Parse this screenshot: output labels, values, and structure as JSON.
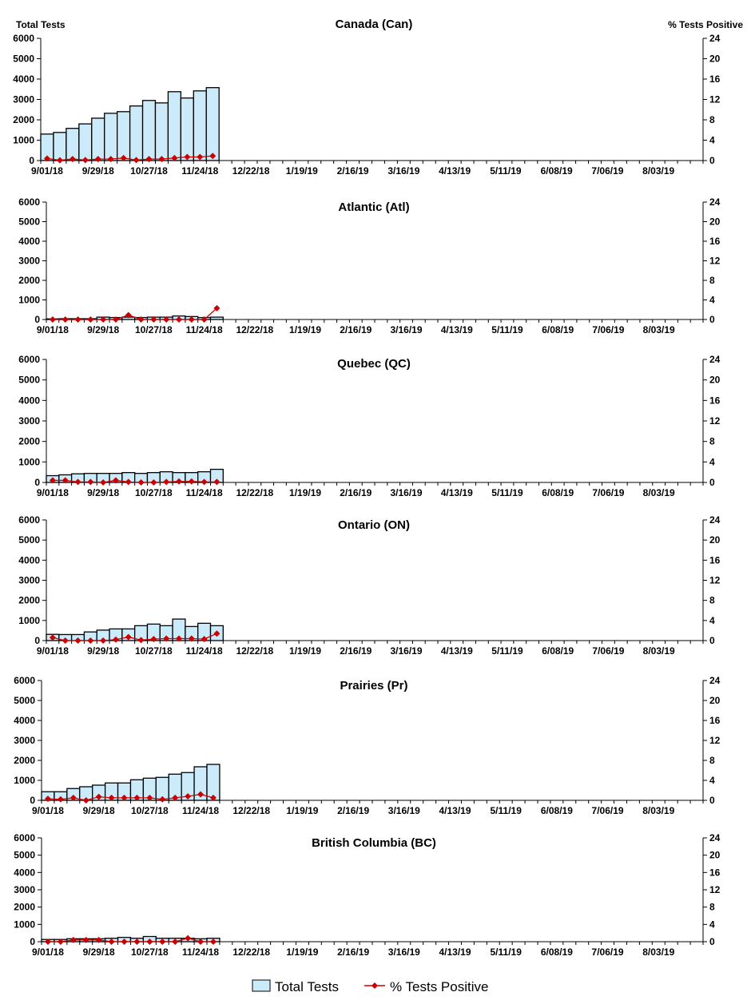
{
  "header": {
    "left_axis_label": "Total Tests",
    "right_axis_label": "% Tests Positive"
  },
  "legend": {
    "bars": "Total Tests",
    "line": "% Tests Positive"
  },
  "colors": {
    "bar_fill": "#CCEBFA",
    "bar_stroke": "#000000",
    "line": "#CC0000"
  },
  "chart_data": [
    {
      "type": "bar+line",
      "title": "Canada (Can)",
      "ylim": [
        0,
        6000
      ],
      "y2lim": [
        0,
        24
      ],
      "yticks": [
        "0",
        "1000",
        "2000",
        "3000",
        "4000",
        "5000",
        "6000"
      ],
      "y2ticks": [
        "0",
        "4",
        "8",
        "12",
        "16",
        "20",
        "24"
      ],
      "xticks": [
        "9/01/18",
        "9/29/18",
        "10/27/18",
        "11/24/18",
        "12/22/18",
        "1/19/19",
        "2/16/19",
        "3/16/19",
        "4/13/19",
        "5/11/19",
        "6/08/19",
        "7/06/19",
        "8/03/19"
      ],
      "total_tests": [
        1300,
        1380,
        1580,
        1800,
        2080,
        2320,
        2400,
        2680,
        2950,
        2830,
        3380,
        3070,
        3420,
        3580
      ],
      "pct_positive": [
        0.4,
        0.05,
        0.3,
        0.1,
        0.3,
        0.3,
        0.5,
        0.1,
        0.3,
        0.3,
        0.5,
        0.7,
        0.7,
        0.9
      ]
    },
    {
      "type": "bar+line",
      "title": "Atlantic (Atl)",
      "ylim": [
        0,
        6000
      ],
      "y2lim": [
        0,
        24
      ],
      "yticks": [
        "0",
        "1000",
        "2000",
        "3000",
        "4000",
        "5000",
        "6000"
      ],
      "y2ticks": [
        "0",
        "4",
        "8",
        "12",
        "16",
        "20",
        "24"
      ],
      "xticks": [
        "9/01/18",
        "9/29/18",
        "10/27/18",
        "11/24/18",
        "12/22/18",
        "1/19/19",
        "2/16/19",
        "3/16/19",
        "4/13/19",
        "5/11/19",
        "6/08/19",
        "7/06/19",
        "8/03/19"
      ],
      "total_tests": [
        30,
        40,
        40,
        40,
        120,
        100,
        120,
        100,
        120,
        120,
        180,
        150,
        100,
        120
      ],
      "pct_positive": [
        0,
        0,
        0,
        0,
        0,
        0,
        0.9,
        0,
        0,
        0,
        0,
        0,
        0,
        2.3
      ]
    },
    {
      "type": "bar+line",
      "title": "Quebec (QC)",
      "ylim": [
        0,
        6000
      ],
      "y2lim": [
        0,
        24
      ],
      "yticks": [
        "0",
        "1000",
        "2000",
        "3000",
        "4000",
        "5000",
        "6000"
      ],
      "y2ticks": [
        "0",
        "4",
        "8",
        "12",
        "16",
        "20",
        "24"
      ],
      "xticks": [
        "9/01/18",
        "9/29/18",
        "10/27/18",
        "11/24/18",
        "12/22/18",
        "1/19/19",
        "2/16/19",
        "3/16/19",
        "4/13/19",
        "5/11/19",
        "6/08/19",
        "7/06/19",
        "8/03/19"
      ],
      "total_tests": [
        330,
        370,
        420,
        440,
        440,
        440,
        480,
        440,
        480,
        520,
        480,
        480,
        520,
        640
      ],
      "pct_positive": [
        0.4,
        0.4,
        0.1,
        0.1,
        0,
        0.4,
        0.1,
        0,
        0,
        0.1,
        0.2,
        0.2,
        0.1,
        0.1
      ]
    },
    {
      "type": "bar+line",
      "title": "Ontario (ON)",
      "ylim": [
        0,
        6000
      ],
      "y2lim": [
        0,
        24
      ],
      "yticks": [
        "0",
        "1000",
        "2000",
        "3000",
        "4000",
        "5000",
        "6000"
      ],
      "y2ticks": [
        "0",
        "4",
        "8",
        "12",
        "16",
        "20",
        "24"
      ],
      "xticks": [
        "9/01/18",
        "9/29/18",
        "10/27/18",
        "11/24/18",
        "12/22/18",
        "1/19/19",
        "2/16/19",
        "3/16/19",
        "4/13/19",
        "5/11/19",
        "6/08/19",
        "7/06/19",
        "8/03/19"
      ],
      "total_tests": [
        310,
        300,
        300,
        430,
        520,
        580,
        580,
        740,
        820,
        740,
        1070,
        700,
        860,
        740
      ],
      "pct_positive": [
        0.6,
        0,
        0,
        0,
        0,
        0.2,
        0.7,
        0.1,
        0.3,
        0.4,
        0.4,
        0.4,
        0.3,
        1.4
      ]
    },
    {
      "type": "bar+line",
      "title": "Prairies (Pr)",
      "ylim": [
        0,
        6000
      ],
      "y2lim": [
        0,
        24
      ],
      "yticks": [
        "0",
        "1000",
        "2000",
        "3000",
        "4000",
        "5000",
        "6000"
      ],
      "y2ticks": [
        "0",
        "4",
        "8",
        "12",
        "16",
        "20",
        "24"
      ],
      "xticks": [
        "9/01/18",
        "9/29/18",
        "10/27/18",
        "11/24/18",
        "12/22/18",
        "1/19/19",
        "2/16/19",
        "3/16/19",
        "4/13/19",
        "5/11/19",
        "6/08/19",
        "7/06/19",
        "8/03/19"
      ],
      "total_tests": [
        430,
        430,
        590,
        680,
        760,
        870,
        870,
        1030,
        1110,
        1150,
        1310,
        1390,
        1680,
        1800
      ],
      "pct_positive": [
        0.3,
        0.2,
        0.5,
        0,
        0.7,
        0.5,
        0.5,
        0.5,
        0.5,
        0.2,
        0.5,
        0.8,
        1.2,
        0.5
      ]
    },
    {
      "type": "bar+line",
      "title": "British Columbia (BC)",
      "ylim": [
        0,
        6000
      ],
      "y2lim": [
        0,
        24
      ],
      "yticks": [
        "0",
        "1000",
        "2000",
        "3000",
        "4000",
        "5000",
        "6000"
      ],
      "y2ticks": [
        "0",
        "4",
        "8",
        "12",
        "16",
        "20",
        "24"
      ],
      "xticks": [
        "9/01/18",
        "9/29/18",
        "10/27/18",
        "11/24/18",
        "12/22/18",
        "1/19/19",
        "2/16/19",
        "3/16/19",
        "4/13/19",
        "5/11/19",
        "6/08/19",
        "7/06/19",
        "8/03/19"
      ],
      "total_tests": [
        130,
        130,
        170,
        170,
        170,
        200,
        250,
        200,
        300,
        200,
        200,
        200,
        170,
        200
      ],
      "pct_positive": [
        0,
        0,
        0.4,
        0.4,
        0.4,
        0,
        0,
        0,
        0,
        0,
        0,
        0.8,
        0,
        0
      ]
    }
  ]
}
